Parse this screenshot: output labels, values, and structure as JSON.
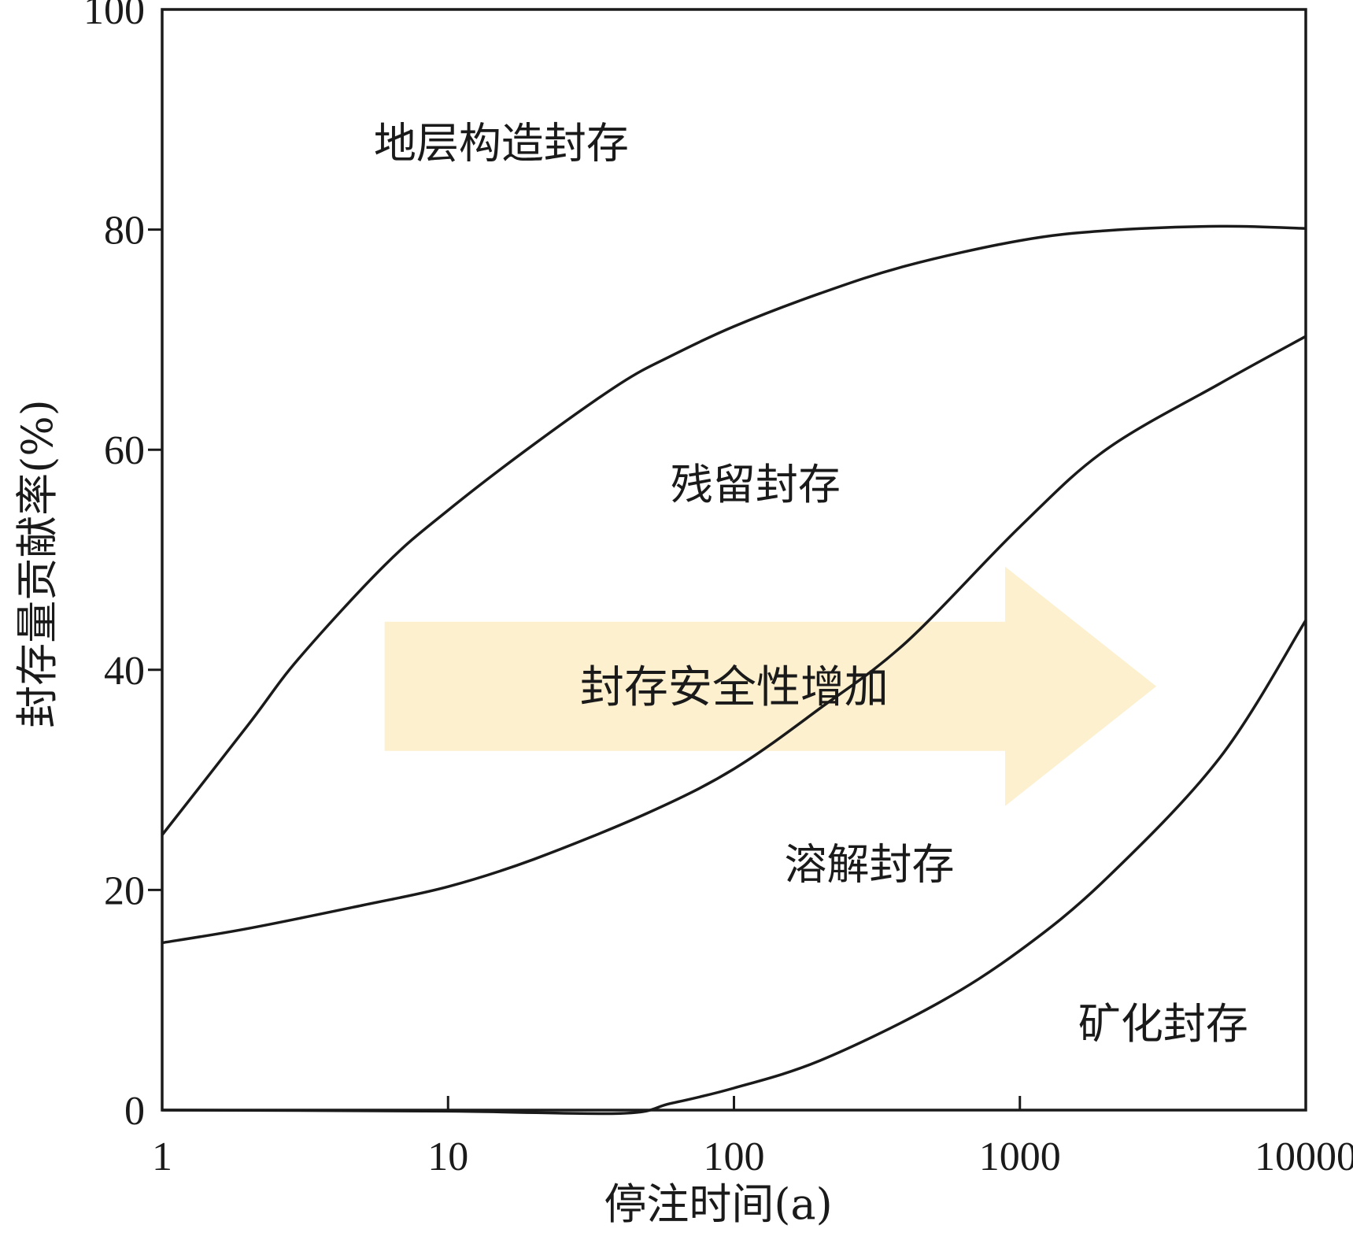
{
  "chart_data": {
    "type": "area",
    "title": "",
    "xlabel": "停注时间(a)",
    "ylabel": "封存量贡献率(%)",
    "x_scale": "log",
    "xlim": [
      1,
      10000
    ],
    "ylim": [
      0,
      100
    ],
    "x_ticks": [
      1,
      10,
      100,
      1000,
      10000
    ],
    "x_tick_labels": [
      "1",
      "10",
      "100",
      "1000",
      "10000"
    ],
    "y_ticks": [
      0,
      20,
      40,
      60,
      80,
      100
    ],
    "y_tick_labels": [
      "0",
      "20",
      "40",
      "60",
      "80",
      "100"
    ],
    "grid": false,
    "boundaries": [
      {
        "id": "upper",
        "points": [
          [
            1,
            25
          ],
          [
            2,
            35
          ],
          [
            3,
            41
          ],
          [
            6,
            49.5
          ],
          [
            10,
            54.5
          ],
          [
            20,
            60.5
          ],
          [
            40,
            66
          ],
          [
            60,
            68.5
          ],
          [
            100,
            71.2
          ],
          [
            200,
            74.2
          ],
          [
            400,
            76.7
          ],
          [
            1000,
            79
          ],
          [
            2000,
            79.9
          ],
          [
            5000,
            80.3
          ],
          [
            10000,
            80.1
          ]
        ]
      },
      {
        "id": "middle",
        "points": [
          [
            1,
            15.2
          ],
          [
            2,
            16.5
          ],
          [
            5,
            18.6
          ],
          [
            10,
            20.3
          ],
          [
            20,
            22.8
          ],
          [
            50,
            27
          ],
          [
            100,
            31
          ],
          [
            200,
            36.5
          ],
          [
            400,
            42.5
          ],
          [
            1000,
            53
          ],
          [
            2000,
            60
          ],
          [
            5000,
            66
          ],
          [
            10000,
            70.3
          ]
        ]
      },
      {
        "id": "lower",
        "points": [
          [
            1,
            0
          ],
          [
            10,
            -0.1
          ],
          [
            40,
            -0.3
          ],
          [
            60,
            0.6
          ],
          [
            100,
            2
          ],
          [
            200,
            4.5
          ],
          [
            500,
            9.5
          ],
          [
            1000,
            14.5
          ],
          [
            2000,
            21
          ],
          [
            5000,
            32
          ],
          [
            10000,
            44.5
          ]
        ]
      }
    ],
    "regions": [
      {
        "label": "地层构造封存",
        "x": 5.5,
        "y": 86.5
      },
      {
        "label": "残留封存",
        "x": 60,
        "y": 55.5
      },
      {
        "label": "溶解封存",
        "x": 150,
        "y": 21
      },
      {
        "label": "矿化封存",
        "x": 1600,
        "y": 6.5
      }
    ],
    "annotations": [
      {
        "type": "arrow",
        "label": "封存安全性增加",
        "direction": "right",
        "color": "#fdf0cf",
        "x_start": 6,
        "x_end": 3000,
        "y_center": 38.5
      }
    ]
  }
}
